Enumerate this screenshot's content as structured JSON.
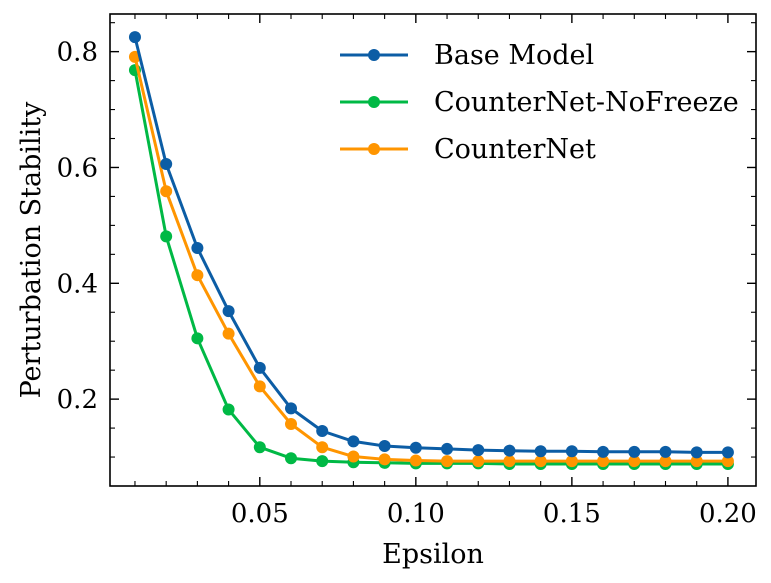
{
  "chart_data": {
    "type": "line",
    "title": "",
    "xlabel": "Epsilon",
    "ylabel": "Perturbation Stability",
    "xlim": [
      0.002,
      0.209
    ],
    "ylim": [
      0.05,
      0.865
    ],
    "xticks": [
      0.05,
      0.1,
      0.15,
      0.2
    ],
    "xtick_labels": [
      "0.05",
      "0.10",
      "0.15",
      "0.20"
    ],
    "yticks": [
      0.2,
      0.4,
      0.6,
      0.8
    ],
    "ytick_labels": [
      "0.2",
      "0.4",
      "0.6",
      "0.8"
    ],
    "grid": false,
    "legend_position": "top-right",
    "x": [
      0.01,
      0.02,
      0.03,
      0.04,
      0.05,
      0.06,
      0.07,
      0.08,
      0.09,
      0.1,
      0.11,
      0.12,
      0.13,
      0.14,
      0.15,
      0.16,
      0.17,
      0.18,
      0.19,
      0.2
    ],
    "series": [
      {
        "name": "Base Model",
        "color": "#0C5DA5",
        "values": [
          0.825,
          0.606,
          0.461,
          0.352,
          0.254,
          0.184,
          0.145,
          0.127,
          0.119,
          0.116,
          0.114,
          0.112,
          0.111,
          0.11,
          0.11,
          0.109,
          0.109,
          0.109,
          0.108,
          0.108
        ]
      },
      {
        "name": "CounterNet-NoFreeze",
        "color": "#00B945",
        "values": [
          0.768,
          0.481,
          0.305,
          0.182,
          0.117,
          0.098,
          0.093,
          0.091,
          0.09,
          0.089,
          0.089,
          0.089,
          0.088,
          0.088,
          0.088,
          0.088,
          0.088,
          0.088,
          0.088,
          0.088
        ]
      },
      {
        "name": "CounterNet",
        "color": "#FF9500",
        "values": [
          0.791,
          0.559,
          0.414,
          0.313,
          0.222,
          0.157,
          0.117,
          0.101,
          0.096,
          0.094,
          0.093,
          0.093,
          0.093,
          0.093,
          0.093,
          0.093,
          0.093,
          0.093,
          0.093,
          0.093
        ]
      }
    ]
  }
}
